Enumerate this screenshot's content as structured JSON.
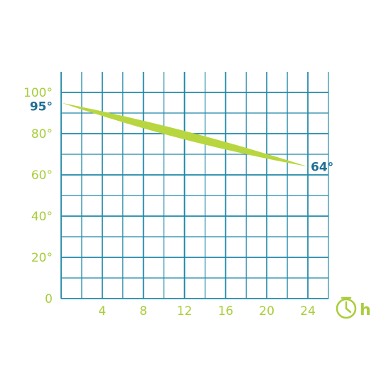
{
  "chart_data": {
    "type": "area",
    "x_ticks": [
      "4",
      "8",
      "12",
      "16",
      "20",
      "24"
    ],
    "y_ticks": [
      "0",
      "20°",
      "40°",
      "60°",
      "80°",
      "100°"
    ],
    "x_unit": "h",
    "x_unit_icon": "clock-icon",
    "xlim": [
      0,
      26
    ],
    "ylim": [
      0,
      100
    ],
    "grid": true,
    "series": [
      {
        "x": [
          0,
          24
        ],
        "y": [
          95,
          64
        ],
        "start_label": "95°",
        "end_label": "64°"
      }
    ],
    "colors": {
      "grid": "#1f88a8",
      "axis_text": "#a9cd3b",
      "band": "#b8d63f",
      "annotation": "#1f6f95"
    }
  }
}
